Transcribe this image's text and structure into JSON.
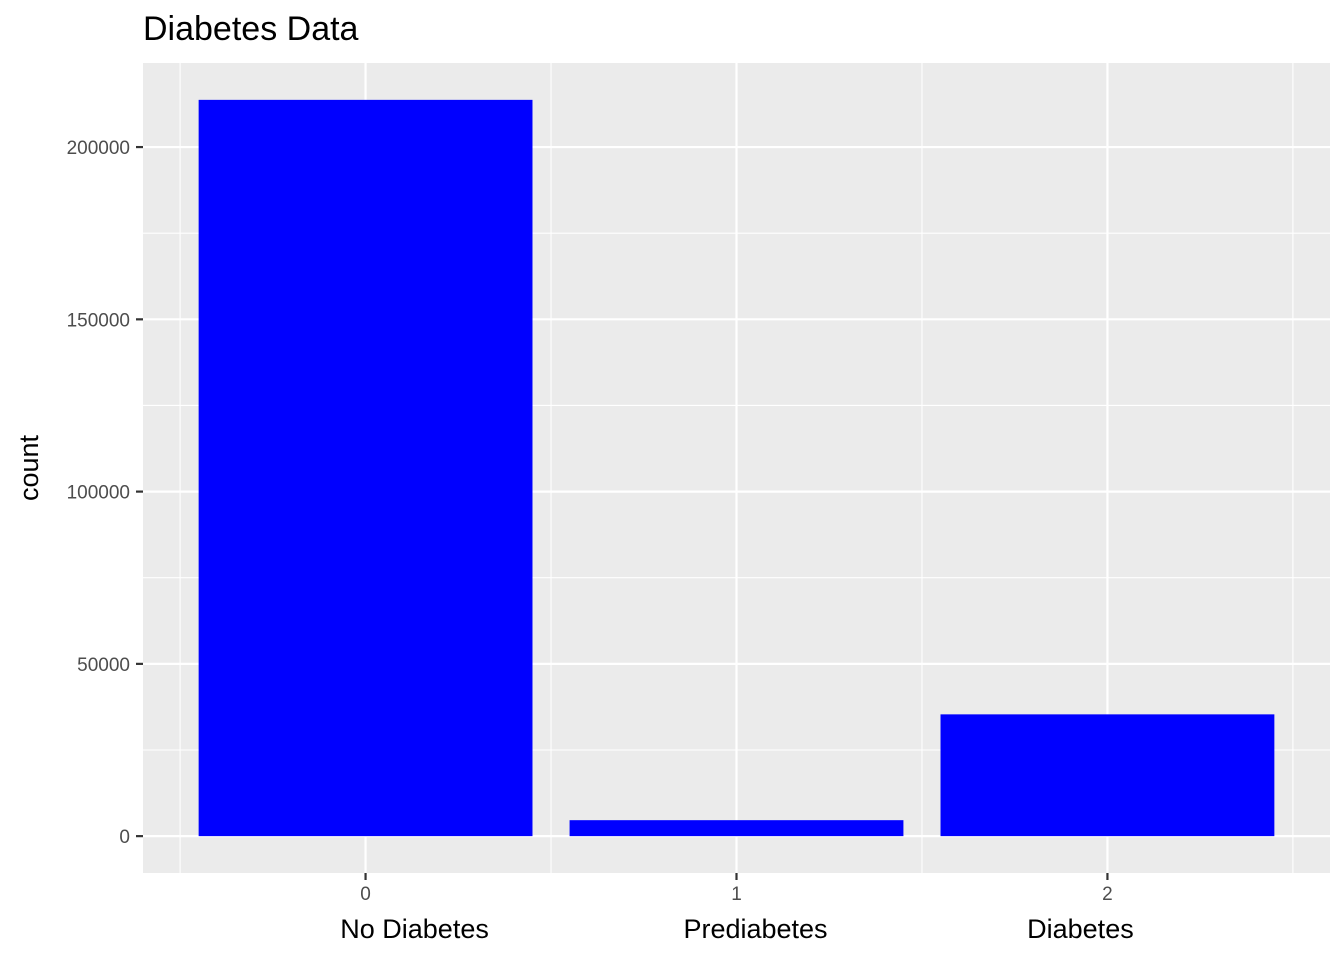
{
  "chart_data": {
    "type": "bar",
    "title": "Diabetes Data",
    "xlabel": "",
    "ylabel": "count",
    "categories": [
      "0",
      "1",
      "2"
    ],
    "category_names": [
      "No Diabetes",
      "Prediabetes",
      "Diabetes"
    ],
    "values": [
      213703,
      4631,
      35346
    ],
    "bar_color": "#0000ff",
    "panel_color": "#ebebeb",
    "grid_color": "#ffffff",
    "ylim": [
      -10700,
      224400
    ],
    "yticks": [
      0,
      50000,
      100000,
      150000,
      200000
    ],
    "ytick_labels": [
      "0",
      "50000",
      "100000",
      "150000",
      "200000"
    ],
    "grid": true,
    "legend": "none"
  }
}
